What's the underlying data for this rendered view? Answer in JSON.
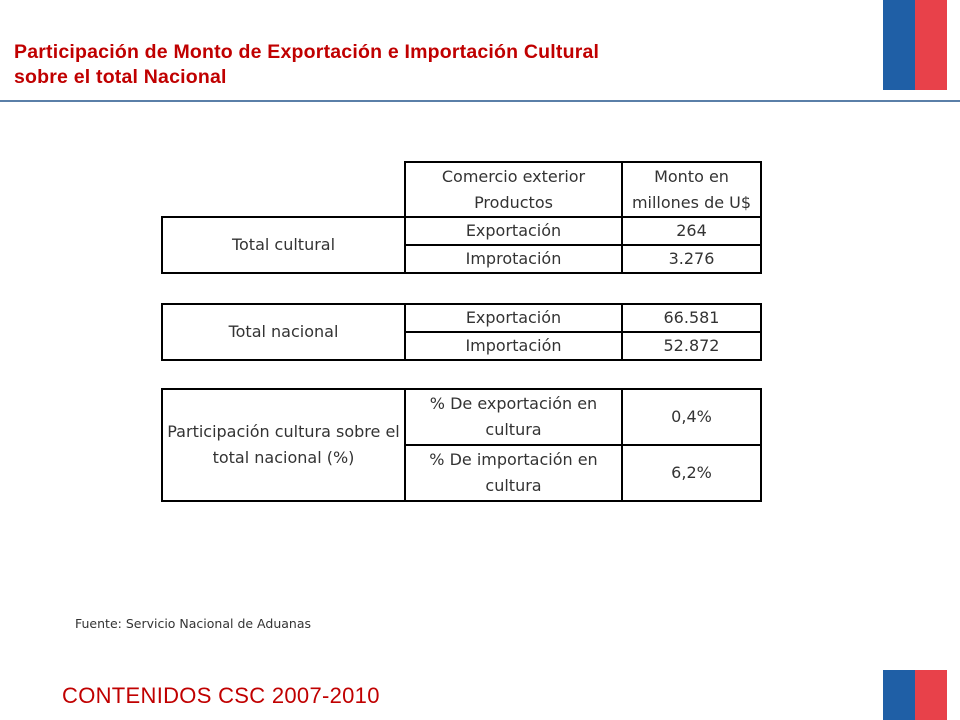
{
  "header": {
    "title_line1": "Participación de Monto de Exportación e Importación Cultural",
    "title_line2": "sobre el total Nacional"
  },
  "table1": {
    "col_header_1": "Comercio exterior Productos",
    "col_header_2": "Monto en millones de U$",
    "group_label": "Total cultural",
    "rows": [
      {
        "label": "Exportación",
        "value": "264"
      },
      {
        "label": "Improtación",
        "value": "3.276"
      }
    ]
  },
  "table2": {
    "group_label": "Total nacional",
    "rows": [
      {
        "label": "Exportación",
        "value": "66.581"
      },
      {
        "label": "Importación",
        "value": "52.872"
      }
    ]
  },
  "table3": {
    "group_label": "Participación cultura sobre el total nacional (%)",
    "rows": [
      {
        "label": "% De exportación en cultura",
        "value": "0,4%"
      },
      {
        "label": "% De importación en cultura",
        "value": "6,2%"
      }
    ]
  },
  "source": "Fuente: Servicio Nacional de Aduanas",
  "footer": "CONTENIDOS CSC 2007-2010",
  "colors": {
    "title": "#c00000",
    "rule": "#5a7fa8",
    "flag_blue": "#1f5fa6",
    "flag_red": "#e8414a"
  }
}
